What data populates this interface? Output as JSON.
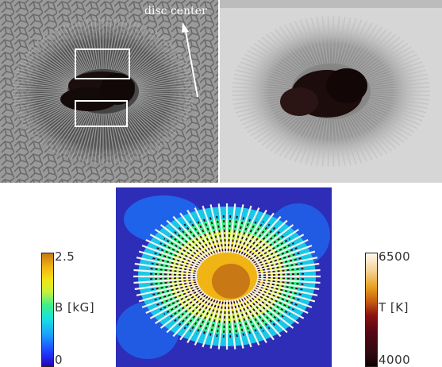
{
  "figure": {
    "annotation": "disc center",
    "left_colorbar": {
      "top_value": "2.5",
      "label": "B [kG]",
      "bottom_value": "0"
    },
    "right_colorbar": {
      "top_value": "6500",
      "label": "T [K]",
      "bottom_value": "4000"
    }
  },
  "colors": {
    "field_low": "#2a00b4",
    "field_high": "#c87814",
    "temp_low": "#100000",
    "temp_high": "#fff8f0",
    "box_outline": "#ffffff",
    "arrow": "#ffffff"
  }
}
